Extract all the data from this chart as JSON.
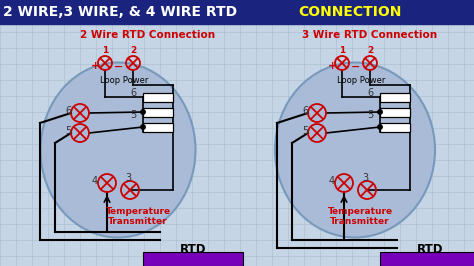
{
  "title_black": "2 WIRE,3 WIRE, & 4 WIRE RTD ",
  "title_yellow": "CONNECTION",
  "title_bg": "#1a237e",
  "title_text_color": "#ffffff",
  "title_yellow_color": "#ffff00",
  "bg_color": "#c5d5e5",
  "grid_color": "#aabbcc",
  "ellipse_color": "#aabbd8",
  "ellipse_edge": "#7799bb",
  "label_2wire": "2 Wire RTD Connection",
  "label_3wire": "3 Wire RTD Connection",
  "label_color": "#cc0000",
  "temp_label": "Temperature\nTransmitter",
  "rtd_label": "RTD",
  "rtd_box_color": "#7700bb",
  "wire_color": "#000000",
  "resistor_color": "#ffffff",
  "node_color": "#000000",
  "cross_color": "#cc0000",
  "number_color": "#333333",
  "loop_power_color": "#000000",
  "plus_color": "#cc0000"
}
